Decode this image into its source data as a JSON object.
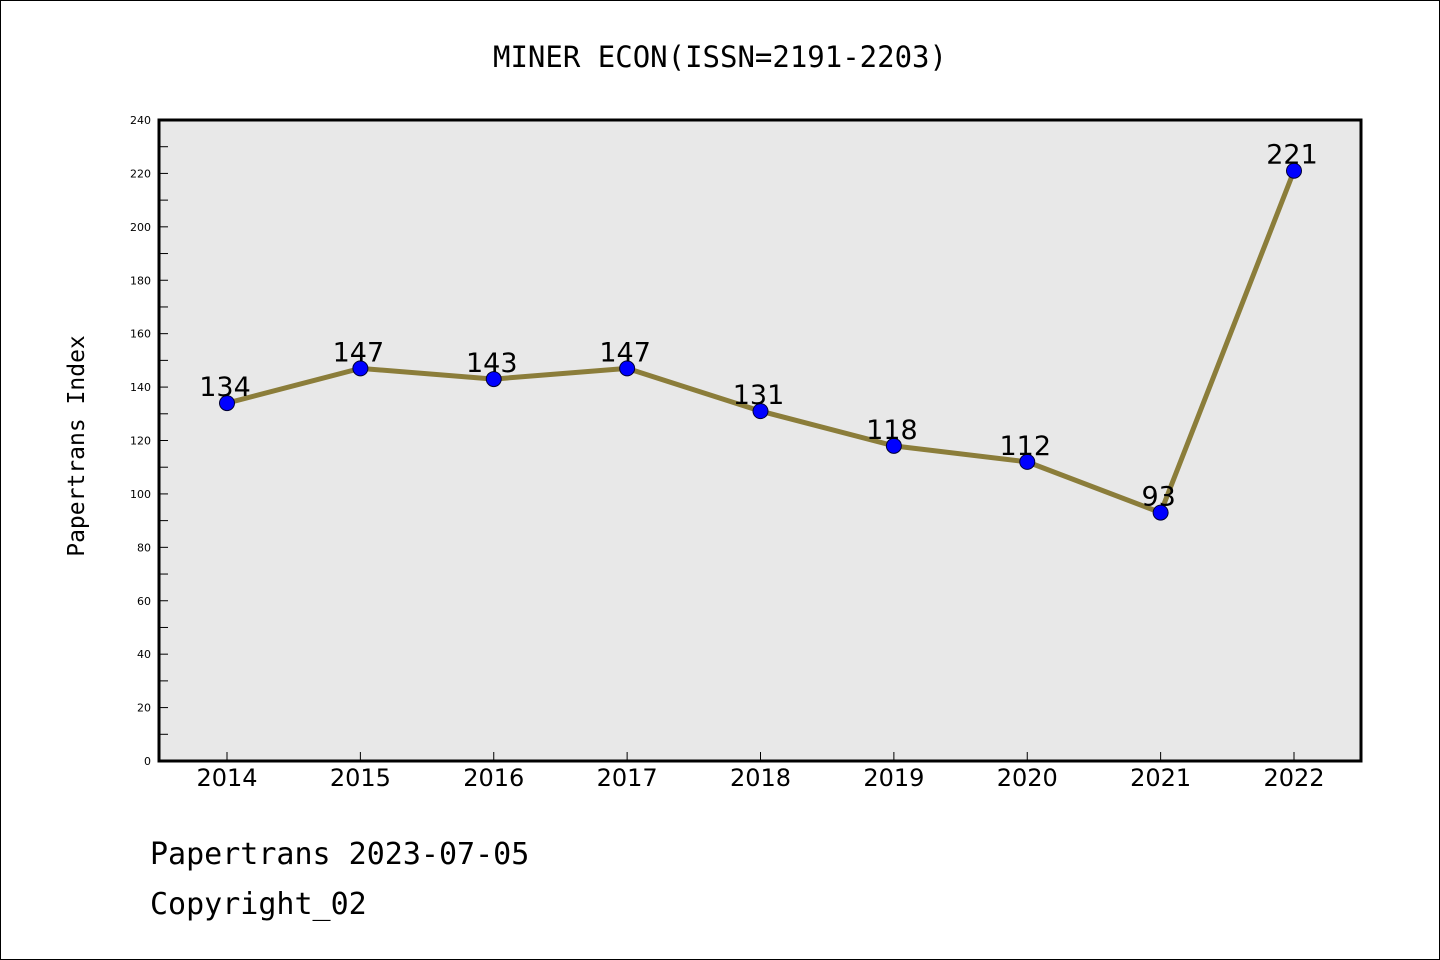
{
  "chart_data": {
    "type": "line",
    "title": "MINER ECON(ISSN=2191-2203)",
    "xlabel": "",
    "ylabel": "Papertrans Index",
    "categories": [
      "2014",
      "2015",
      "2016",
      "2017",
      "2018",
      "2019",
      "2020",
      "2021",
      "2022"
    ],
    "values": [
      134,
      147,
      143,
      147,
      131,
      118,
      112,
      93,
      221
    ],
    "ylim": [
      0,
      240
    ],
    "yticks": [
      0,
      20,
      40,
      60,
      80,
      100,
      120,
      140,
      160,
      180,
      200,
      220,
      240
    ],
    "grid": false,
    "legend": "none",
    "line_color": "#8b7d3a",
    "marker_color": "#0000ff",
    "plot_background": "#e8e8e8"
  },
  "footer": {
    "line1": "Papertrans 2023-07-05",
    "line2": "Copyright_02"
  }
}
